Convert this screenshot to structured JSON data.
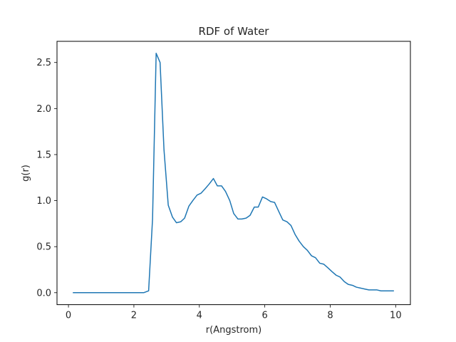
{
  "chart_data": {
    "type": "line",
    "title": "RDF of Water",
    "xlabel": "r(Angstrom)",
    "ylabel": "g(r)",
    "xlim": [
      -0.35,
      10.45
    ],
    "ylim": [
      -0.13,
      2.73
    ],
    "xticks": [
      0,
      2,
      4,
      6,
      8,
      10
    ],
    "yticks": [
      0.0,
      0.5,
      1.0,
      1.5,
      2.0,
      2.5
    ],
    "xtick_labels": [
      "0",
      "2",
      "4",
      "6",
      "8",
      "10"
    ],
    "ytick_labels": [
      "0.0",
      "0.5",
      "1.0",
      "1.5",
      "2.0",
      "2.5"
    ],
    "grid": false,
    "series": [
      {
        "name": "g(r)",
        "color": "#1f77b4",
        "x": [
          0.15,
          0.5,
          1.0,
          1.5,
          2.0,
          2.3,
          2.45,
          2.57,
          2.68,
          2.8,
          2.92,
          3.05,
          3.18,
          3.3,
          3.43,
          3.55,
          3.68,
          3.8,
          3.93,
          4.05,
          4.18,
          4.3,
          4.43,
          4.55,
          4.68,
          4.8,
          4.93,
          5.05,
          5.18,
          5.3,
          5.43,
          5.55,
          5.68,
          5.8,
          5.93,
          6.05,
          6.18,
          6.3,
          6.43,
          6.55,
          6.68,
          6.8,
          6.93,
          7.05,
          7.18,
          7.3,
          7.43,
          7.55,
          7.68,
          7.8,
          7.93,
          8.05,
          8.18,
          8.3,
          8.43,
          8.55,
          8.68,
          8.8,
          8.93,
          9.05,
          9.18,
          9.3,
          9.43,
          9.55,
          9.68,
          9.8,
          9.93
        ],
        "values": [
          0.0,
          0.0,
          0.0,
          0.0,
          0.0,
          0.0,
          0.02,
          0.8,
          2.6,
          2.5,
          1.55,
          0.95,
          0.82,
          0.76,
          0.77,
          0.81,
          0.94,
          1.0,
          1.06,
          1.08,
          1.13,
          1.18,
          1.24,
          1.16,
          1.16,
          1.1,
          1.0,
          0.86,
          0.8,
          0.8,
          0.81,
          0.84,
          0.93,
          0.93,
          1.04,
          1.02,
          0.99,
          0.98,
          0.88,
          0.79,
          0.77,
          0.73,
          0.63,
          0.56,
          0.5,
          0.46,
          0.4,
          0.38,
          0.32,
          0.31,
          0.27,
          0.23,
          0.19,
          0.17,
          0.12,
          0.09,
          0.08,
          0.06,
          0.05,
          0.04,
          0.03,
          0.03,
          0.03,
          0.02,
          0.02,
          0.02,
          0.02
        ]
      }
    ]
  }
}
